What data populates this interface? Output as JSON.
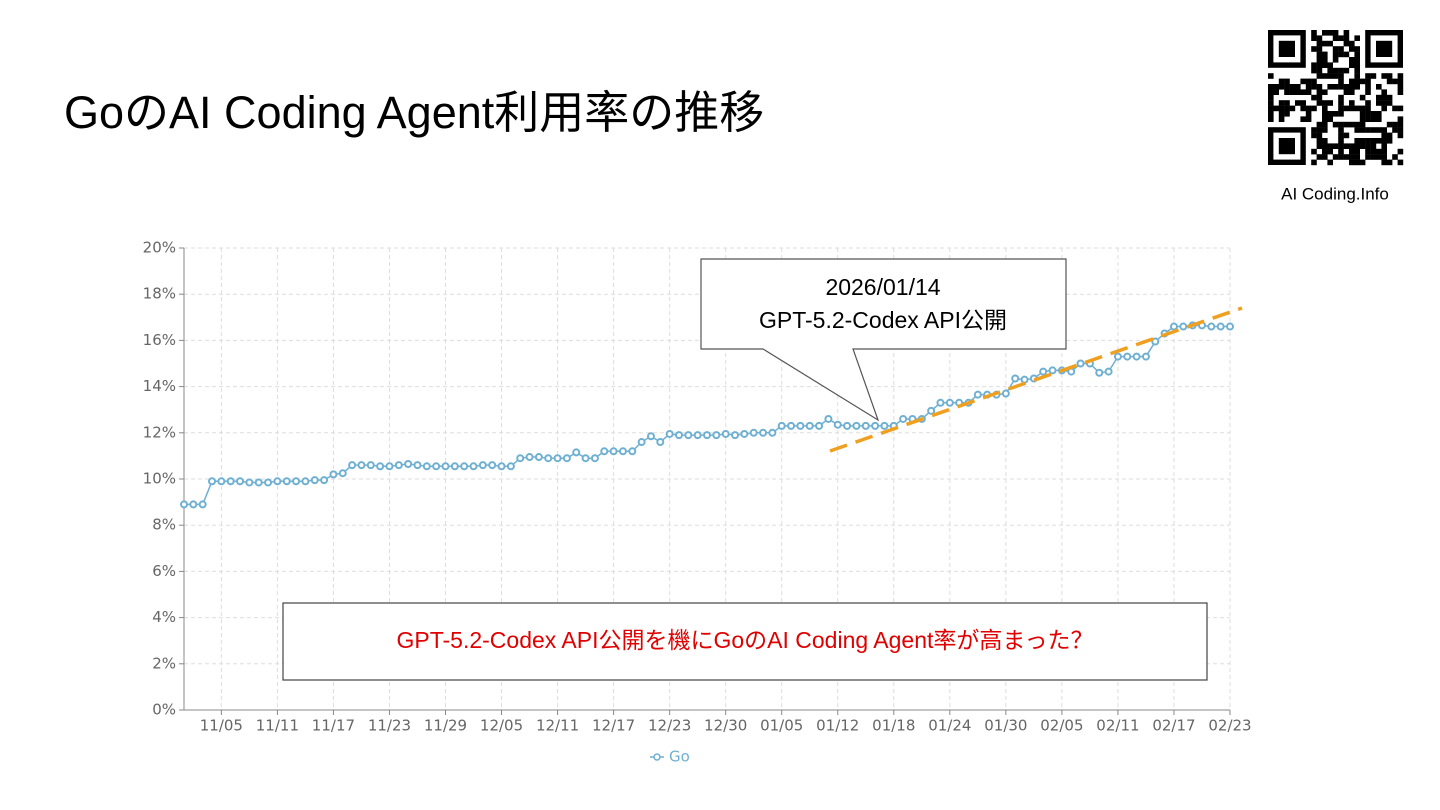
{
  "header": {
    "title": "GoのAI Coding Agent利用率の推移",
    "site": "AI Coding.Info"
  },
  "chart_data": {
    "type": "line",
    "categories": [
      null,
      null,
      null,
      null,
      "11/05",
      null,
      null,
      null,
      null,
      null,
      "11/11",
      null,
      null,
      null,
      null,
      null,
      "11/17",
      null,
      null,
      null,
      null,
      null,
      "11/23",
      null,
      null,
      null,
      null,
      null,
      "11/29",
      null,
      null,
      null,
      null,
      null,
      "12/05",
      null,
      null,
      null,
      null,
      null,
      "12/11",
      null,
      null,
      null,
      null,
      null,
      "12/17",
      null,
      null,
      null,
      null,
      null,
      "12/23",
      null,
      null,
      null,
      null,
      null,
      "12/30",
      null,
      null,
      null,
      null,
      null,
      "01/05",
      null,
      null,
      null,
      null,
      null,
      "01/12",
      null,
      null,
      null,
      null,
      null,
      "01/18",
      null,
      null,
      null,
      null,
      null,
      "01/24",
      null,
      null,
      null,
      null,
      null,
      "01/30",
      null,
      null,
      null,
      null,
      null,
      "02/05",
      null,
      null,
      null,
      null,
      null,
      "02/11",
      null,
      null,
      null,
      null,
      null,
      "02/17",
      null,
      null,
      null,
      null,
      null,
      "02/23"
    ],
    "series": [
      {
        "name": "Go",
        "color": "#6fb0d2",
        "values": [
          8.9,
          8.9,
          8.9,
          9.9,
          9.9,
          9.9,
          9.9,
          9.85,
          9.85,
          9.85,
          9.9,
          9.9,
          9.9,
          9.9,
          9.95,
          9.95,
          10.2,
          10.25,
          10.6,
          10.6,
          10.6,
          10.55,
          10.55,
          10.6,
          10.65,
          10.6,
          10.55,
          10.55,
          10.55,
          10.55,
          10.55,
          10.55,
          10.6,
          10.6,
          10.55,
          10.55,
          10.9,
          10.95,
          10.95,
          10.9,
          10.9,
          10.9,
          11.15,
          10.9,
          10.9,
          11.2,
          11.2,
          11.2,
          11.2,
          11.6,
          11.85,
          11.6,
          11.95,
          11.9,
          11.9,
          11.9,
          11.9,
          11.9,
          11.95,
          11.9,
          11.95,
          12.0,
          12.0,
          12.0,
          12.3,
          12.3,
          12.3,
          12.3,
          12.3,
          12.6,
          12.35,
          12.3,
          12.3,
          12.3,
          12.3,
          12.3,
          12.3,
          12.6,
          12.6,
          12.6,
          12.95,
          13.3,
          13.3,
          13.3,
          13.3,
          13.65,
          13.65,
          13.65,
          13.7,
          14.35,
          14.3,
          14.35,
          14.65,
          14.7,
          14.7,
          14.65,
          15.0,
          15.0,
          14.6,
          14.65,
          15.3,
          15.3,
          15.3,
          15.3,
          15.95,
          16.3,
          16.6,
          16.6,
          16.65,
          16.65,
          16.6,
          16.6,
          16.6
        ]
      }
    ],
    "ylim": [
      0,
      20
    ],
    "yticks": [
      {
        "value": 0,
        "label": "0%"
      },
      {
        "value": 2,
        "label": "2%"
      },
      {
        "value": 4,
        "label": "4%"
      },
      {
        "value": 6,
        "label": "6%"
      },
      {
        "value": 8,
        "label": "8%"
      },
      {
        "value": 10,
        "label": "10%"
      },
      {
        "value": 12,
        "label": "12%"
      },
      {
        "value": 14,
        "label": "14%"
      },
      {
        "value": 16,
        "label": "16%"
      },
      {
        "value": 18,
        "label": "18%"
      },
      {
        "value": 20,
        "label": "20%"
      }
    ],
    "grid": true,
    "annotations": [
      "2026/01/14",
      "GPT-5.2-Codex API公開",
      "GPT-5.2-Codex API公開を機にGoのAI Coding Agent率が高まった？"
    ]
  }
}
